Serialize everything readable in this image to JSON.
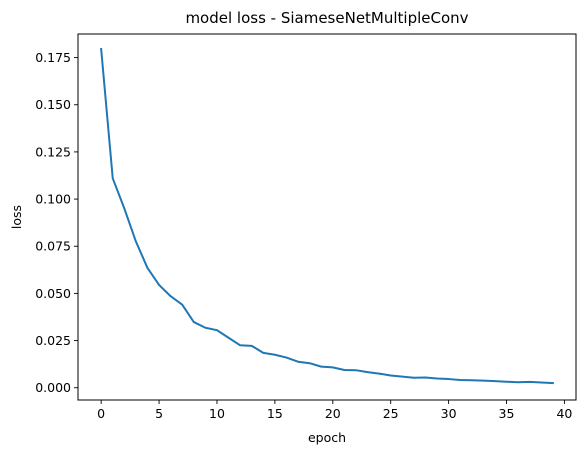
{
  "chart_data": {
    "type": "line",
    "title": "model loss - SiameseNetMultipleConv",
    "xlabel": "epoch",
    "ylabel": "loss",
    "xlim": [
      -2.0,
      41.0
    ],
    "ylim": [
      -0.0065,
      0.1875
    ],
    "x_ticks": [
      0,
      5,
      10,
      15,
      20,
      25,
      30,
      35,
      40
    ],
    "x_tick_labels": [
      "0",
      "5",
      "10",
      "15",
      "20",
      "25",
      "30",
      "35",
      "40"
    ],
    "y_ticks": [
      0.0,
      0.025,
      0.05,
      0.075,
      0.1,
      0.125,
      0.15,
      0.175
    ],
    "y_tick_labels": [
      "0.000",
      "0.025",
      "0.050",
      "0.075",
      "0.100",
      "0.125",
      "0.150",
      "0.175"
    ],
    "grid": false,
    "legend": "none",
    "series": [
      {
        "color": "#1f77b4",
        "x": [
          0,
          1,
          2,
          3,
          4,
          5,
          6,
          7,
          8,
          9,
          10,
          11,
          12,
          13,
          14,
          15,
          16,
          17,
          18,
          19,
          20,
          21,
          22,
          23,
          24,
          25,
          26,
          27,
          28,
          29,
          30,
          31,
          32,
          33,
          34,
          35,
          36,
          37,
          38,
          39
        ],
        "values": [
          0.1795,
          0.111,
          0.095,
          0.0775,
          0.0635,
          0.0545,
          0.0485,
          0.044,
          0.0348,
          0.0318,
          0.0305,
          0.0265,
          0.0225,
          0.0222,
          0.0185,
          0.0175,
          0.016,
          0.0138,
          0.013,
          0.0112,
          0.0108,
          0.0094,
          0.0093,
          0.0083,
          0.0075,
          0.0065,
          0.0059,
          0.0053,
          0.0054,
          0.0049,
          0.0046,
          0.0041,
          0.004,
          0.0038,
          0.0035,
          0.0032,
          0.0029,
          0.0031,
          0.0028,
          0.0025
        ]
      }
    ]
  }
}
